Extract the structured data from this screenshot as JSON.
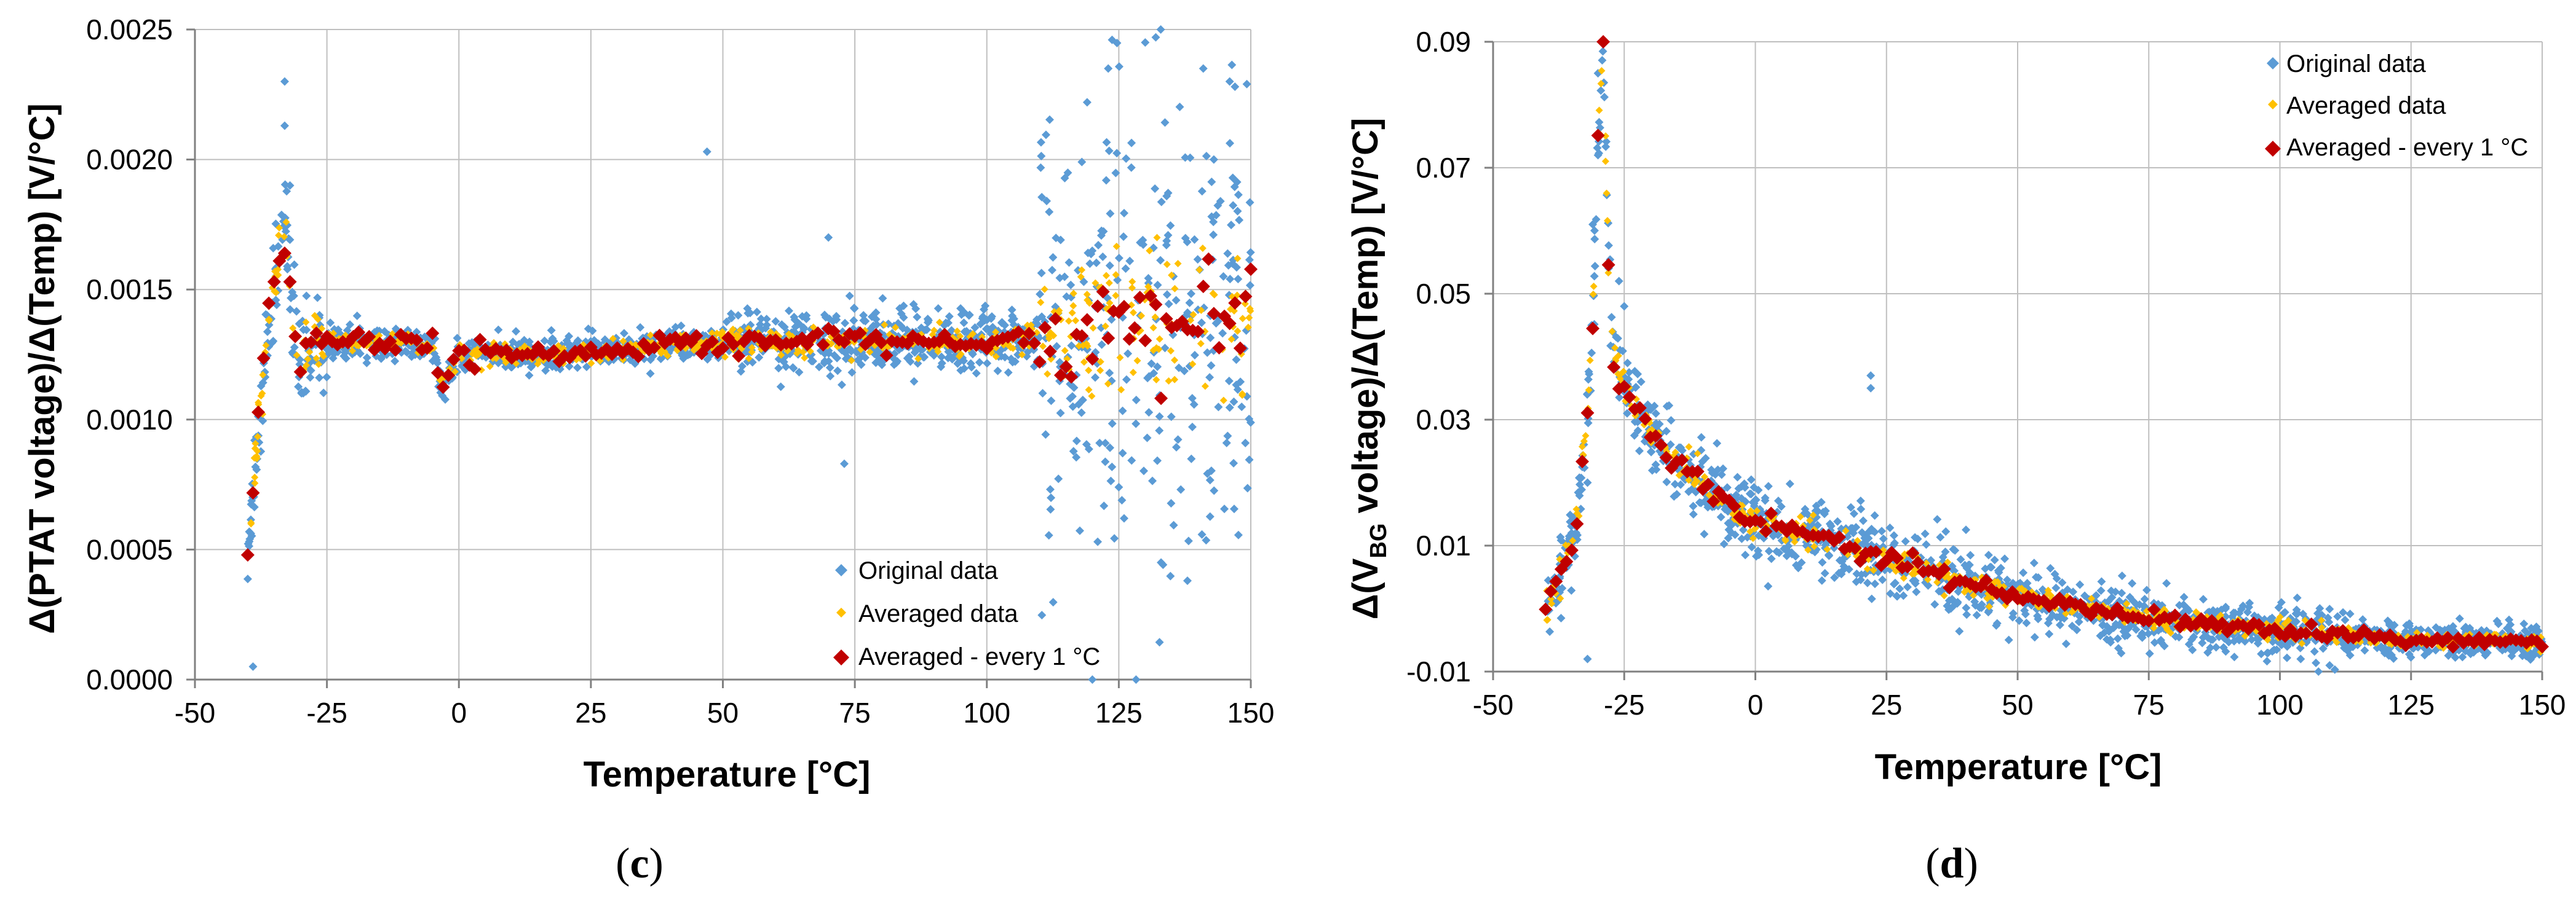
{
  "colors": {
    "original": "#5B9BD5",
    "averaged": "#FFC000",
    "averaged_1c": "#C00000",
    "grid": "#BFBFBF",
    "axis": "#808080"
  },
  "chart_data": [
    {
      "id": "c",
      "type": "scatter",
      "panel_label": "c",
      "xlabel": "Temperature [°C]",
      "ylabel": "Δ(PTAT voltage)/Δ(Temp) [V/°C]",
      "xlim": [
        -50,
        150
      ],
      "ylim": [
        0,
        0.0025
      ],
      "xticks": [
        -50,
        -25,
        0,
        25,
        50,
        75,
        100,
        125,
        150
      ],
      "xtick_labels": [
        "-50",
        "-25",
        "0",
        "25",
        "50",
        "75",
        "100",
        "125",
        "150"
      ],
      "yticks": [
        0,
        0.0005,
        0.001,
        0.0015,
        0.002,
        0.0025
      ],
      "ytick_labels": [
        "0.0000",
        "0.0005",
        "0.0010",
        "0.0015",
        "0.0020",
        "0.0025"
      ],
      "legend_position": "bottom-right",
      "series": [
        {
          "name": "Original data",
          "marker": "diamond-small",
          "noise": [
            0.0001,
            3e-05,
            6e-05,
            0.00045
          ],
          "n": 1500,
          "outliers": [
            [
              47,
              0.00203
            ],
            [
              70,
              0.0017
            ],
            [
              73,
              0.00083
            ],
            [
              119,
              0.00222
            ],
            [
              123,
              0.00235
            ],
            [
              130,
              0.00245
            ],
            [
              132,
              0.00247
            ],
            [
              133,
              0.00045
            ],
            [
              138,
              0.00038
            ],
            [
              141,
              0.00235
            ],
            [
              143,
              0.002
            ],
            [
              146,
              0.0023
            ],
            [
              147,
              0.00228
            ],
            [
              121,
              0.00053
            ],
            [
              125,
              0.00074
            ],
            [
              126,
              0.00062
            ],
            [
              -39,
              5e-05
            ],
            [
              -33,
              0.0023
            ],
            [
              -33,
              0.00213
            ],
            [
              -32,
              0.0019
            ]
          ]
        },
        {
          "name": "Averaged data",
          "marker": "diamond-small",
          "n": 600,
          "noise": [
            6e-05,
            2e-05,
            3e-05,
            0.00014
          ]
        },
        {
          "name": "Averaged - every 1 °C",
          "marker": "diamond-large",
          "n": 191,
          "noise": [
            5e-05,
            2.2e-05,
            2e-05,
            0.0001
          ]
        }
      ],
      "trend": {
        "x": [
          -40,
          -38,
          -36,
          -34,
          -33,
          -32,
          -31,
          -30,
          -29,
          -28,
          -27,
          -26,
          -25,
          -20,
          -10,
          -5,
          -3,
          0,
          10,
          25,
          50,
          75,
          100,
          110,
          120,
          130,
          140,
          150
        ],
        "y": [
          0.0004,
          0.001,
          0.0014,
          0.00165,
          0.0017,
          0.0016,
          0.0013,
          0.00125,
          0.00125,
          0.00126,
          0.00128,
          0.0013,
          0.0013,
          0.0013,
          0.0013,
          0.00128,
          0.00112,
          0.00125,
          0.00125,
          0.00126,
          0.0013,
          0.0013,
          0.0013,
          0.00132,
          0.00135,
          0.00138,
          0.0014,
          0.00145
        ]
      }
    },
    {
      "id": "d",
      "type": "scatter",
      "panel_label": "d",
      "xlabel": "Temperature [°C]",
      "ylabel_prefix": "Δ(V",
      "ylabel_sub": "BG",
      "ylabel_suffix": " voltage)/Δ(Temp) [V/°C]",
      "xlim": [
        -50,
        150
      ],
      "ylim": [
        -0.01,
        0.09
      ],
      "xticks": [
        -50,
        -25,
        0,
        25,
        50,
        75,
        100,
        125,
        150
      ],
      "xtick_labels": [
        "-50",
        "-25",
        "0",
        "25",
        "50",
        "75",
        "100",
        "125",
        "150"
      ],
      "yticks": [
        -0.01,
        0.01,
        0.03,
        0.05,
        0.07,
        0.09
      ],
      "ytick_labels": [
        "-0.01",
        "0.01",
        "0.03",
        "0.05",
        "0.07",
        "0.09"
      ],
      "legend_position": "top-right",
      "series": [
        {
          "name": "Original data",
          "marker": "diamond-small",
          "noise": [
            0.003,
            0.003,
            0.0022,
            0.0014
          ],
          "n": 1500,
          "outliers": [
            [
              22,
              0.037
            ],
            [
              22,
              0.035
            ],
            [
              -31,
              0.061
            ],
            [
              -30,
              0.072
            ],
            [
              -32,
              0.02
            ],
            [
              -32,
              -0.008
            ],
            [
              -30,
              0.085
            ],
            [
              -29,
              0.09
            ],
            [
              -26,
              0.052
            ],
            [
              -25,
              0.048
            ]
          ]
        },
        {
          "name": "Averaged data",
          "marker": "diamond-small",
          "n": 600,
          "noise": [
            0.0015,
            0.0012,
            0.0008,
            0.0006
          ]
        },
        {
          "name": "Averaged - every 1 °C",
          "marker": "diamond-large",
          "n": 191,
          "noise": [
            0.0012,
            0.0008,
            0.0005,
            0.0004
          ]
        }
      ],
      "trend": {
        "x": [
          -40,
          -38,
          -36,
          -34,
          -32,
          -31,
          -30,
          -29,
          -28,
          -27,
          -26,
          -25,
          -20,
          -15,
          -10,
          -5,
          0,
          10,
          20,
          25,
          40,
          50,
          75,
          100,
          125,
          140,
          150
        ],
        "y": [
          0.001,
          0.004,
          0.008,
          0.014,
          0.03,
          0.045,
          0.075,
          0.09,
          0.055,
          0.04,
          0.037,
          0.035,
          0.028,
          0.023,
          0.02,
          0.017,
          0.014,
          0.012,
          0.009,
          0.008,
          0.004,
          0.002,
          -0.0015,
          -0.0035,
          -0.005,
          -0.005,
          -0.0055
        ]
      }
    }
  ]
}
